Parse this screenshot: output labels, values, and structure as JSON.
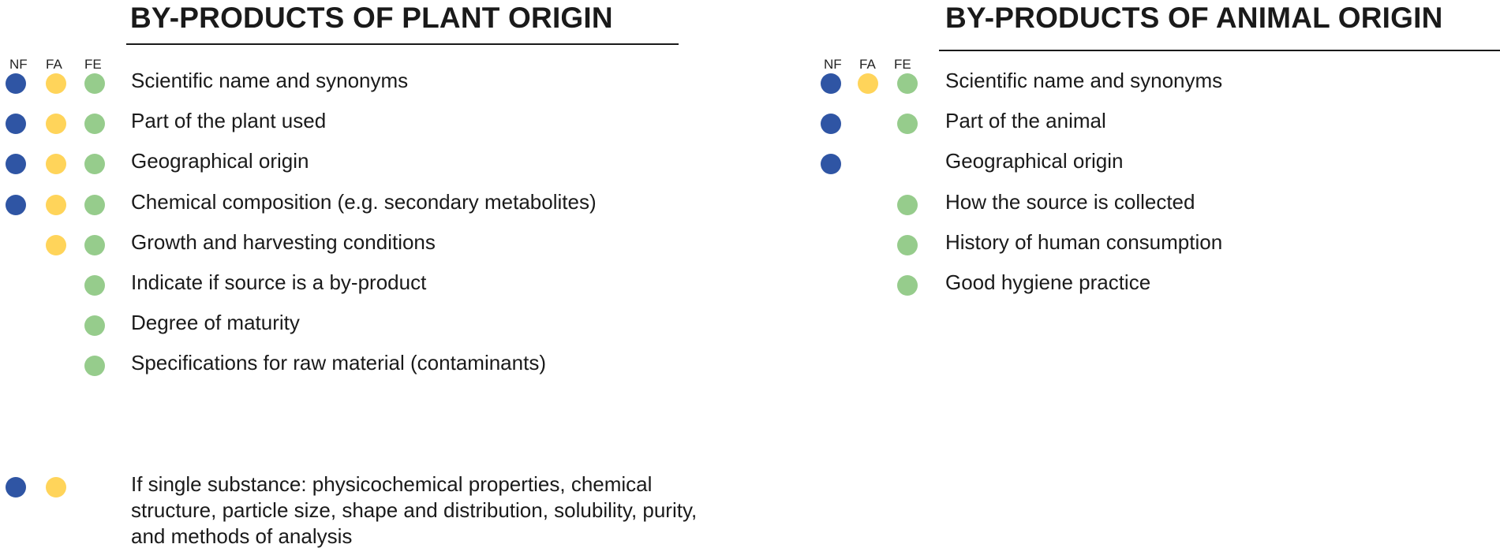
{
  "colors": {
    "NF": "#2f55a4",
    "FA": "#ffd45a",
    "FE": "#96cc8c"
  },
  "plant": {
    "title": "BY-PRODUCTS OF PLANT ORIGIN",
    "headers": [
      "NF",
      "FA",
      "FE"
    ],
    "items": [
      {
        "label": "Scientific name and synonyms",
        "nf": true,
        "fa": true,
        "fe": true
      },
      {
        "label": "Part of the plant used",
        "nf": true,
        "fa": true,
        "fe": true
      },
      {
        "label": "Geographical origin",
        "nf": true,
        "fa": true,
        "fe": true
      },
      {
        "label": "Chemical composition (e.g. secondary metabolites)",
        "nf": true,
        "fa": true,
        "fe": true
      },
      {
        "label": "Growth and harvesting conditions",
        "nf": false,
        "fa": true,
        "fe": true
      },
      {
        "label": "Indicate if source is a by-product",
        "nf": false,
        "fa": false,
        "fe": true
      },
      {
        "label": "Degree of maturity",
        "nf": false,
        "fa": false,
        "fe": true
      },
      {
        "label": "Specifications for raw material (contaminants)",
        "nf": false,
        "fa": false,
        "fe": true
      },
      {
        "label": "If single substance: physicochemical properties, chemical structure, particle size, shape and distribution, solubility, purity, and methods of analysis",
        "nf": true,
        "fa": true,
        "fe": false
      }
    ]
  },
  "animal": {
    "title": "BY-PRODUCTS OF ANIMAL ORIGIN",
    "headers": [
      "NF",
      "FA",
      "FE"
    ],
    "items": [
      {
        "label": "Scientific name and synonyms",
        "nf": true,
        "fa": true,
        "fe": true
      },
      {
        "label": "Part of the animal",
        "nf": true,
        "fa": false,
        "fe": true
      },
      {
        "label": "Geographical origin",
        "nf": true,
        "fa": false,
        "fe": false
      },
      {
        "label": "How the source is collected",
        "nf": false,
        "fa": false,
        "fe": true
      },
      {
        "label": "History of human consumption",
        "nf": false,
        "fa": false,
        "fe": true
      },
      {
        "label": "Good hygiene practice",
        "nf": false,
        "fa": false,
        "fe": true
      }
    ]
  }
}
